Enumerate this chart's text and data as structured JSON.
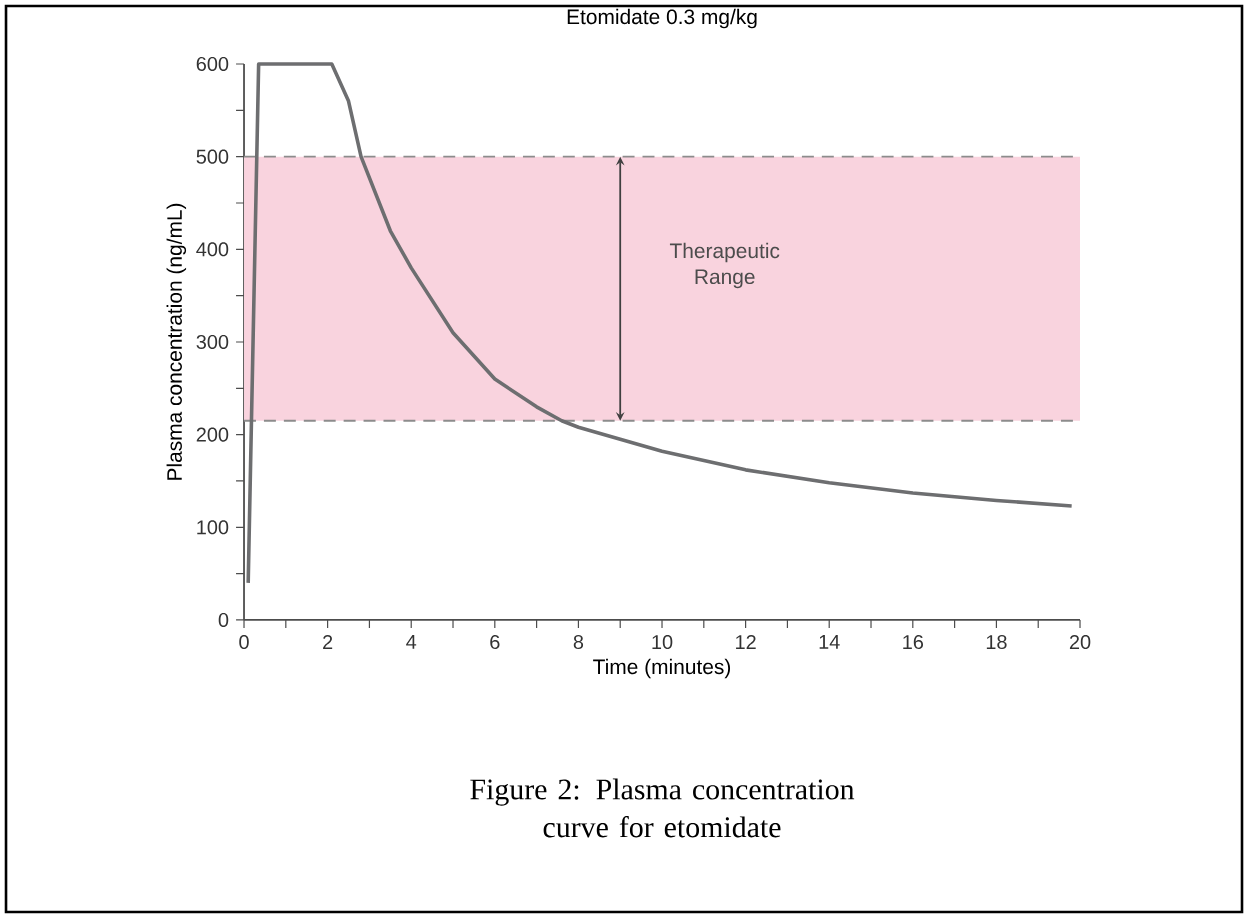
{
  "chart_data": {
    "type": "line",
    "title": "Etomidate 0.3 mg/kg",
    "xlabel": "Time (minutes)",
    "ylabel": "Plasma concentration (ng/mL)",
    "x": [
      0.1,
      0.35,
      2.1,
      2.5,
      2.8,
      3.5,
      4,
      5,
      6,
      7,
      7.6,
      8,
      9,
      10,
      12,
      14,
      16,
      18,
      19.8
    ],
    "series": [
      {
        "color": "#6d6e70",
        "values": [
          40,
          600,
          600,
          560,
          500,
          420,
          380,
          310,
          260,
          230,
          215,
          208,
          195,
          182,
          162,
          148,
          137,
          129,
          123
        ]
      }
    ],
    "xlim": [
      0,
      20
    ],
    "ylim": [
      0,
      600
    ],
    "xticks": [
      0,
      2,
      4,
      6,
      8,
      10,
      12,
      14,
      16,
      18,
      20
    ],
    "yticks": [
      0,
      100,
      200,
      300,
      400,
      500,
      600
    ],
    "bands": [
      {
        "axis": "y",
        "from": 215,
        "to": 500,
        "label": "Therapeutic Range",
        "color": "#f9d3de"
      }
    ],
    "annotations": [
      "Figure 2: Plasma concentration curve for etomidate"
    ],
    "marker": "none",
    "line_style": "solid"
  }
}
